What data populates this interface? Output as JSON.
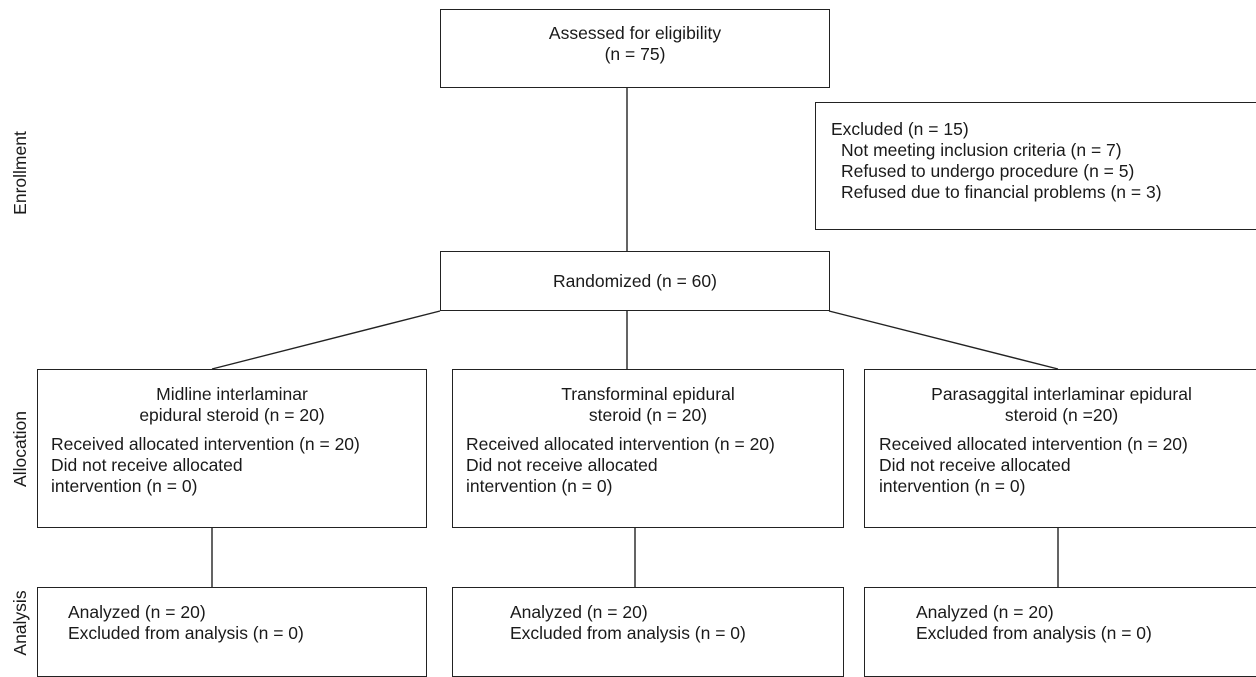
{
  "side_labels": {
    "enrollment": "Enrollment",
    "allocation": "Allocation",
    "analysis": "Analysis"
  },
  "assessed": {
    "line1": "Assessed for eligibility",
    "line2": "(n = 75)"
  },
  "excluded": {
    "title": "Excluded (n = 15)",
    "reasons": [
      "Not meeting inclusion criteria (n = 7)",
      "Refused to undergo procedure (n = 5)",
      "Refused due to financial problems (n = 3)"
    ]
  },
  "randomized": {
    "label": "Randomized (n = 60)"
  },
  "groups": [
    {
      "title1": "Midline interlaminar",
      "title2": "epidural steroid (n = 20)",
      "received": "Received allocated intervention (n = 20)",
      "not_received1": "Did not receive allocated",
      "not_received2": "intervention (n = 0)",
      "analyzed": "Analyzed (n = 20)",
      "excluded_analysis": "Excluded from analysis  (n = 0)"
    },
    {
      "title1": "Transforminal epidural",
      "title2": "steroid (n = 20)",
      "received": "Received allocated intervention (n = 20)",
      "not_received1": "Did not receive allocated",
      "not_received2": "intervention (n = 0)",
      "analyzed": "Analyzed (n = 20)",
      "excluded_analysis": "Excluded from analysis  (n = 0)"
    },
    {
      "title1": "Parasaggital interlaminar epidural",
      "title2": "steroid (n =20)",
      "received": "Received allocated intervention (n = 20)",
      "not_received1": "Did not receive allocated",
      "not_received2": "intervention (n = 0)",
      "analyzed": "Analyzed (n = 20)",
      "excluded_analysis": "Excluded from analysis  (n = 0)"
    }
  ]
}
